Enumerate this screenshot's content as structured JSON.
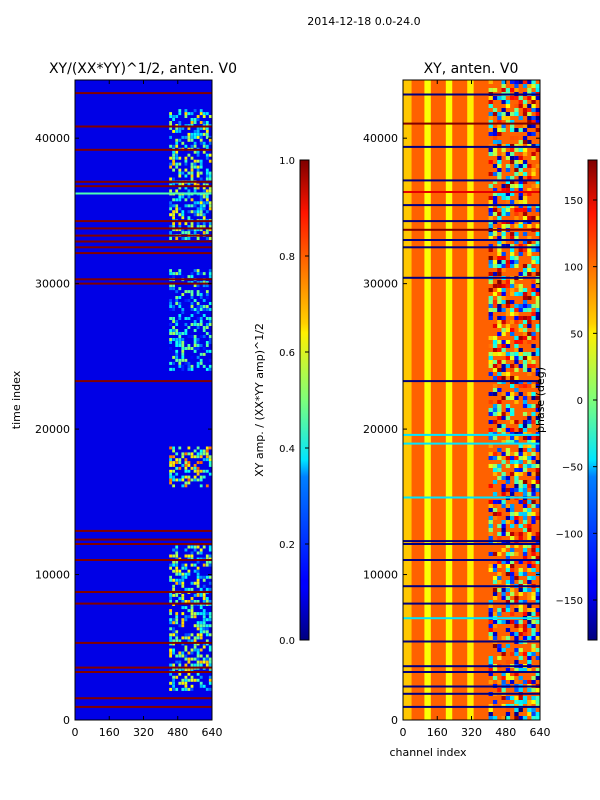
{
  "figure_title": "2014-12-18 0.0-24.0",
  "chart_data": [
    {
      "type": "heatmap",
      "title": "XY/(XX*YY)^1/2, anten. V0",
      "xlabel": "",
      "ylabel": "time index",
      "x_range": [
        0,
        640
      ],
      "y_range": [
        0,
        44000
      ],
      "x_ticks": [
        0,
        160,
        320,
        480,
        640
      ],
      "x_tick_labels": [
        "0",
        "160",
        "320",
        "480",
        "640"
      ],
      "y_ticks": [
        0,
        10000,
        20000,
        30000,
        40000
      ],
      "y_tick_labels": [
        "0",
        "10000",
        "20000",
        "30000",
        "40000"
      ],
      "colorbar": {
        "label": "XY amp. / (XX*YY amp)^1/2",
        "range": [
          0.0,
          1.0
        ],
        "ticks": [
          0.0,
          0.2,
          0.4,
          0.6,
          0.8,
          1.0
        ],
        "tick_labels": [
          "0.0",
          "0.2",
          "0.4",
          "0.6",
          "0.8",
          "1.0"
        ]
      },
      "colormap": "jet",
      "background_value": 0.1,
      "horizontal_bands": [
        {
          "time": 43100,
          "value": 1.0
        },
        {
          "time": 40800,
          "value": 1.0
        },
        {
          "time": 39200,
          "value": 1.0
        },
        {
          "time": 37000,
          "value": 1.0
        },
        {
          "time": 36700,
          "value": 1.0
        },
        {
          "time": 36200,
          "value": 0.45
        },
        {
          "time": 34300,
          "value": 1.0
        },
        {
          "time": 33800,
          "value": 1.0
        },
        {
          "time": 33300,
          "value": 1.0
        },
        {
          "time": 32900,
          "value": 1.0
        },
        {
          "time": 32500,
          "value": 1.0
        },
        {
          "time": 32100,
          "value": 1.0
        },
        {
          "time": 30300,
          "value": 1.0
        },
        {
          "time": 30000,
          "value": 1.0
        },
        {
          "time": 23300,
          "value": 1.0
        },
        {
          "time": 13000,
          "value": 1.0
        },
        {
          "time": 12400,
          "value": 1.0
        },
        {
          "time": 12100,
          "value": 1.0
        },
        {
          "time": 11000,
          "value": 1.0
        },
        {
          "time": 8800,
          "value": 1.0
        },
        {
          "time": 8000,
          "value": 1.0
        },
        {
          "time": 5300,
          "value": 1.0
        },
        {
          "time": 3600,
          "value": 1.0
        },
        {
          "time": 3300,
          "value": 1.0
        },
        {
          "time": 1500,
          "value": 1.0
        },
        {
          "time": 900,
          "value": 1.0
        }
      ],
      "active_regions": [
        {
          "x0": 440,
          "x1": 640,
          "t0": 16000,
          "t1": 18800,
          "value": 0.55
        },
        {
          "x0": 440,
          "x1": 640,
          "t0": 2000,
          "t1": 12000,
          "value": 0.45
        },
        {
          "x0": 440,
          "x1": 640,
          "t0": 33000,
          "t1": 42000,
          "value": 0.45
        },
        {
          "x0": 440,
          "x1": 640,
          "t0": 24000,
          "t1": 31000,
          "value": 0.3
        }
      ]
    },
    {
      "type": "heatmap",
      "title": "XY, anten. V0",
      "xlabel": "channel index",
      "ylabel": "",
      "x_range": [
        0,
        640
      ],
      "y_range": [
        0,
        44000
      ],
      "x_ticks": [
        0,
        160,
        320,
        480,
        640
      ],
      "x_tick_labels": [
        "0",
        "160",
        "320",
        "480",
        "640"
      ],
      "y_ticks": [
        0,
        10000,
        20000,
        30000,
        40000
      ],
      "y_tick_labels": [
        "0",
        "10000",
        "20000",
        "30000",
        "40000"
      ],
      "colorbar": {
        "label": "phase (deg)",
        "range": [
          -180,
          180
        ],
        "ticks": [
          -150,
          -100,
          -50,
          0,
          50,
          100,
          150
        ],
        "tick_labels": [
          "−150",
          "−100",
          "−50",
          "0",
          "50",
          "100",
          "150"
        ]
      },
      "colormap": "jet",
      "background_value": 0.78,
      "vertical_stripes": [
        {
          "x0": 0,
          "x1": 40,
          "value": 0.68
        },
        {
          "x0": 100,
          "x1": 130,
          "value": 0.62
        },
        {
          "x0": 200,
          "x1": 230,
          "value": 0.62
        },
        {
          "x0": 300,
          "x1": 330,
          "value": 0.64
        }
      ],
      "horizontal_lines": [
        {
          "time": 43000,
          "value": 0.0
        },
        {
          "time": 41000,
          "value": 1.0
        },
        {
          "time": 39400,
          "value": 0.0
        },
        {
          "time": 37100,
          "value": 0.0
        },
        {
          "time": 36300,
          "value": 0.9
        },
        {
          "time": 35400,
          "value": 0.0
        },
        {
          "time": 34300,
          "value": 0.0
        },
        {
          "time": 33700,
          "value": 1.0
        },
        {
          "time": 33000,
          "value": 0.0
        },
        {
          "time": 32500,
          "value": 0.0
        },
        {
          "time": 30400,
          "value": 0.0
        },
        {
          "time": 23300,
          "value": 0.0
        },
        {
          "time": 19600,
          "value": 0.35
        },
        {
          "time": 19000,
          "value": 0.35
        },
        {
          "time": 15300,
          "value": 0.35
        },
        {
          "time": 12300,
          "value": 0.0
        },
        {
          "time": 12100,
          "value": 0.0
        },
        {
          "time": 11000,
          "value": 0.0
        },
        {
          "time": 9200,
          "value": 0.0
        },
        {
          "time": 8000,
          "value": 0.0
        },
        {
          "time": 7000,
          "value": 0.35
        },
        {
          "time": 5400,
          "value": 0.0
        },
        {
          "time": 3700,
          "value": 0.0
        },
        {
          "time": 3300,
          "value": 0.0
        },
        {
          "time": 2300,
          "value": 0.0
        },
        {
          "time": 1800,
          "value": 0.0
        },
        {
          "time": 900,
          "value": 0.0
        }
      ],
      "noisy_region": {
        "x0": 400,
        "x1": 640,
        "value": 0.4
      }
    }
  ]
}
